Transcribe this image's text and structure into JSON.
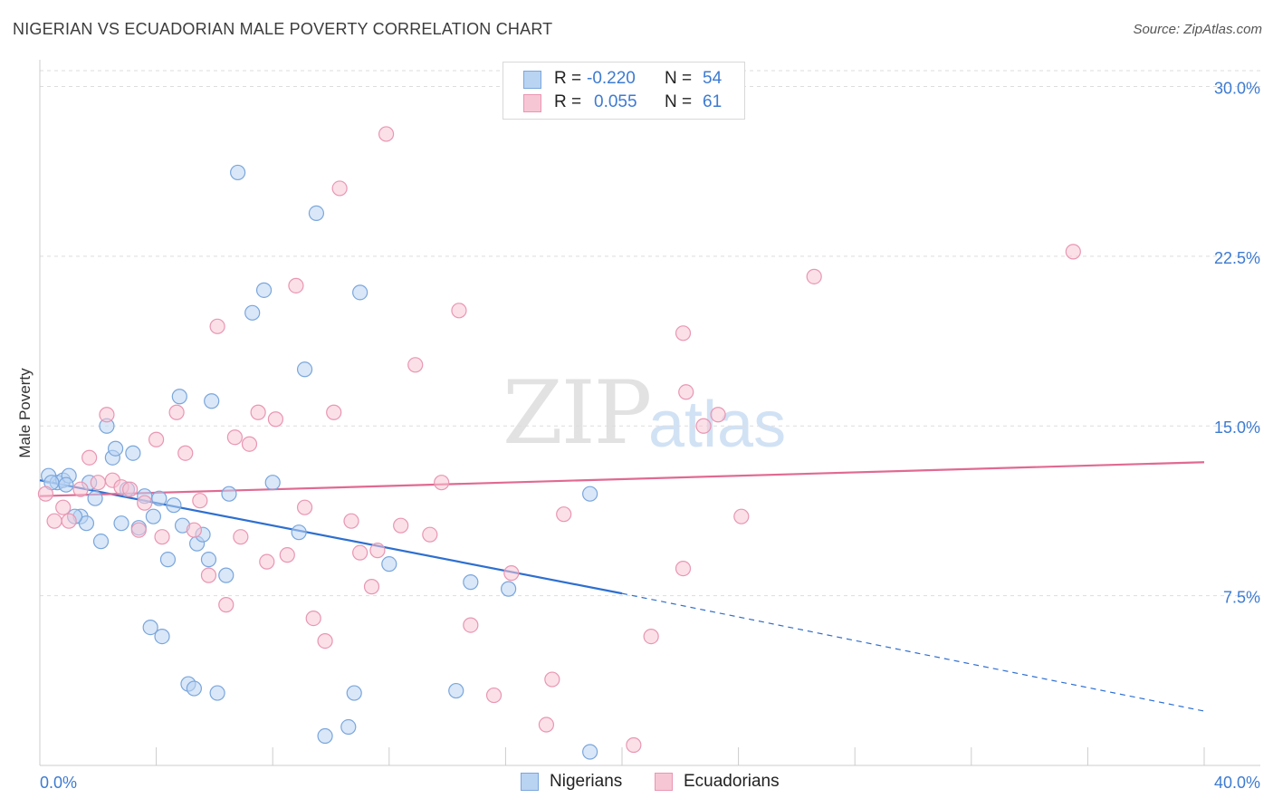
{
  "title": "NIGERIAN VS ECUADORIAN MALE POVERTY CORRELATION CHART",
  "source": "Source: ZipAtlas.com",
  "watermark": {
    "zip": "ZIP",
    "atlas": "atlas"
  },
  "colors": {
    "blue_fill": "#b9d3f3",
    "blue_stroke": "#7aa6dc",
    "blue_line": "#2e6fcf",
    "pink_fill": "#f7c6d5",
    "pink_stroke": "#e996b2",
    "pink_line": "#e06a92",
    "grid": "#dddddd",
    "axis_text": "#3d7bd1"
  },
  "legend": {
    "rows": [
      {
        "r_label": "R =",
        "r_value": "-0.220",
        "n_label": "N =",
        "n_value": "54"
      },
      {
        "r_label": "R =",
        "r_value": "0.055",
        "n_label": "N =",
        "n_value": "61"
      }
    ],
    "series_names": [
      "Nigerians",
      "Ecuadorians"
    ]
  },
  "chart_data": {
    "type": "scatter",
    "title": "NIGERIAN VS ECUADORIAN MALE POVERTY CORRELATION CHART",
    "xlabel": "",
    "ylabel": "Male Poverty",
    "xlim": [
      0,
      40
    ],
    "ylim": [
      0,
      30.7
    ],
    "x_tick_labels": [
      "0.0%",
      "40.0%"
    ],
    "y_ticks": [
      7.5,
      15.0,
      22.5,
      30.0
    ],
    "y_tick_labels": [
      "7.5%",
      "15.0%",
      "22.5%",
      "30.0%"
    ],
    "grid": true,
    "legend_position": "top-center",
    "series": [
      {
        "name": "Nigerians",
        "trend": {
          "x": [
            0,
            20
          ],
          "y": [
            12.6,
            7.6
          ],
          "dashed_to": [
            40,
            2.4
          ]
        },
        "points": [
          [
            0.3,
            12.8
          ],
          [
            0.6,
            12.5
          ],
          [
            0.8,
            12.6
          ],
          [
            1.0,
            12.8
          ],
          [
            1.4,
            11.0
          ],
          [
            1.6,
            10.7
          ],
          [
            1.7,
            12.5
          ],
          [
            1.9,
            11.8
          ],
          [
            2.1,
            9.9
          ],
          [
            2.3,
            15.0
          ],
          [
            2.5,
            13.6
          ],
          [
            2.6,
            14.0
          ],
          [
            2.8,
            10.7
          ],
          [
            3.0,
            12.2
          ],
          [
            3.2,
            13.8
          ],
          [
            3.4,
            10.5
          ],
          [
            3.6,
            11.9
          ],
          [
            3.8,
            6.1
          ],
          [
            3.9,
            11.0
          ],
          [
            4.1,
            11.8
          ],
          [
            4.2,
            5.7
          ],
          [
            4.4,
            9.1
          ],
          [
            4.6,
            11.5
          ],
          [
            4.8,
            16.3
          ],
          [
            4.9,
            10.6
          ],
          [
            5.1,
            3.6
          ],
          [
            5.3,
            3.4
          ],
          [
            5.4,
            9.8
          ],
          [
            5.6,
            10.2
          ],
          [
            5.8,
            9.1
          ],
          [
            5.9,
            16.1
          ],
          [
            6.1,
            3.2
          ],
          [
            6.4,
            8.4
          ],
          [
            6.5,
            12.0
          ],
          [
            6.8,
            26.2
          ],
          [
            7.3,
            20.0
          ],
          [
            7.7,
            21.0
          ],
          [
            8.0,
            12.5
          ],
          [
            8.9,
            10.3
          ],
          [
            9.1,
            17.5
          ],
          [
            9.5,
            24.4
          ],
          [
            9.8,
            1.3
          ],
          [
            10.6,
            1.7
          ],
          [
            10.8,
            3.2
          ],
          [
            11.0,
            20.9
          ],
          [
            12.0,
            8.9
          ],
          [
            14.3,
            3.3
          ],
          [
            14.8,
            8.1
          ],
          [
            16.1,
            7.8
          ],
          [
            18.9,
            0.6
          ],
          [
            18.9,
            12.0
          ],
          [
            0.4,
            12.5
          ],
          [
            1.2,
            11.0
          ],
          [
            0.9,
            12.4
          ]
        ]
      },
      {
        "name": "Ecuadorians",
        "trend": {
          "x": [
            0,
            40
          ],
          "y": [
            11.9,
            13.4
          ]
        },
        "points": [
          [
            0.2,
            12.0
          ],
          [
            0.5,
            10.8
          ],
          [
            0.8,
            11.4
          ],
          [
            1.0,
            10.8
          ],
          [
            1.4,
            12.2
          ],
          [
            1.7,
            13.6
          ],
          [
            2.0,
            12.5
          ],
          [
            2.3,
            15.5
          ],
          [
            2.5,
            12.6
          ],
          [
            2.8,
            12.3
          ],
          [
            3.1,
            12.2
          ],
          [
            3.4,
            10.4
          ],
          [
            3.6,
            11.6
          ],
          [
            4.0,
            14.4
          ],
          [
            4.2,
            10.1
          ],
          [
            4.7,
            15.6
          ],
          [
            5.0,
            13.8
          ],
          [
            5.3,
            10.4
          ],
          [
            5.5,
            11.7
          ],
          [
            5.8,
            8.4
          ],
          [
            6.1,
            19.4
          ],
          [
            6.4,
            7.1
          ],
          [
            6.7,
            14.5
          ],
          [
            6.9,
            10.1
          ],
          [
            7.2,
            14.2
          ],
          [
            7.5,
            15.6
          ],
          [
            7.8,
            9.0
          ],
          [
            8.1,
            15.3
          ],
          [
            8.5,
            9.3
          ],
          [
            8.8,
            21.2
          ],
          [
            9.1,
            11.4
          ],
          [
            9.4,
            6.5
          ],
          [
            9.8,
            5.5
          ],
          [
            10.1,
            15.6
          ],
          [
            10.3,
            25.5
          ],
          [
            10.7,
            10.8
          ],
          [
            11.0,
            9.4
          ],
          [
            11.4,
            7.9
          ],
          [
            11.6,
            9.5
          ],
          [
            11.9,
            27.9
          ],
          [
            12.4,
            10.6
          ],
          [
            12.9,
            17.7
          ],
          [
            13.4,
            10.2
          ],
          [
            13.8,
            12.5
          ],
          [
            14.4,
            20.1
          ],
          [
            14.8,
            6.2
          ],
          [
            15.6,
            3.1
          ],
          [
            16.2,
            8.5
          ],
          [
            17.4,
            1.8
          ],
          [
            17.6,
            3.8
          ],
          [
            18.0,
            11.1
          ],
          [
            20.4,
            0.9
          ],
          [
            21.0,
            5.7
          ],
          [
            22.2,
            16.5
          ],
          [
            22.1,
            19.1
          ],
          [
            22.8,
            15.0
          ],
          [
            23.3,
            15.5
          ],
          [
            24.1,
            11.0
          ],
          [
            26.6,
            21.6
          ],
          [
            35.5,
            22.7
          ],
          [
            22.1,
            8.7
          ]
        ]
      }
    ]
  }
}
